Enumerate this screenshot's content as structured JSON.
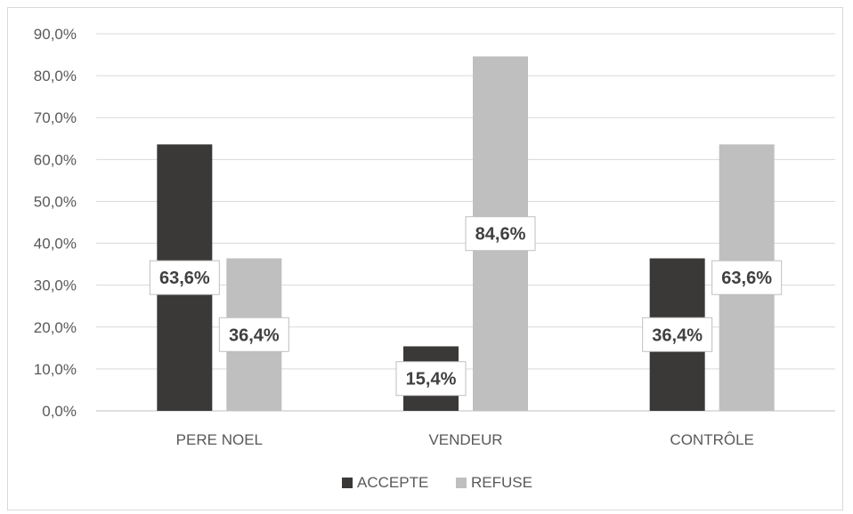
{
  "chart_data": {
    "type": "bar",
    "categories": [
      "PERE NOEL",
      "VENDEUR",
      "CONTRÔLE"
    ],
    "series": [
      {
        "name": "ACCEPTE",
        "color": "#3a3938",
        "values": [
          63.6,
          15.4,
          36.4
        ],
        "labels": [
          "63,6%",
          "15,4%",
          "36,4%"
        ]
      },
      {
        "name": "REFUSE",
        "color": "#bfbfbf",
        "values": [
          36.4,
          84.6,
          63.6
        ],
        "labels": [
          "36,4%",
          "84,6%",
          "63,6%"
        ]
      }
    ],
    "ylim": [
      0,
      90
    ],
    "y_ticks": [
      "0,0%",
      "10,0%",
      "20,0%",
      "30,0%",
      "40,0%",
      "50,0%",
      "60,0%",
      "70,0%",
      "80,0%",
      "90,0%"
    ],
    "grid": true,
    "legend_position": "bottom",
    "title": "",
    "xlabel": "",
    "ylabel": ""
  }
}
